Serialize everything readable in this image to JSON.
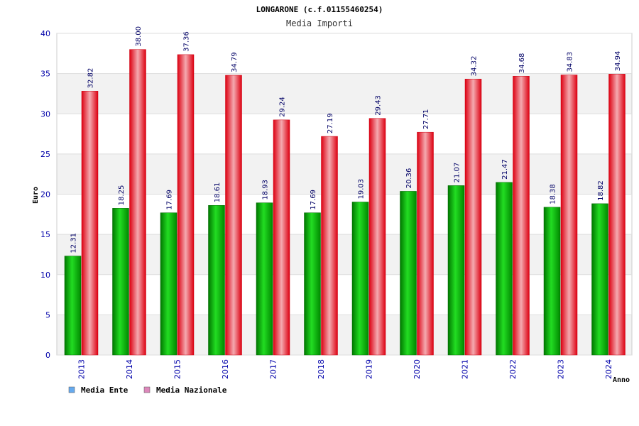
{
  "chart_data": {
    "type": "bar",
    "title": "LONGARONE (c.f.01155460254)",
    "subtitle": "Media Importi",
    "xlabel": "Anno",
    "ylabel": "Euro",
    "ylim": [
      0,
      40
    ],
    "yticks": [
      0,
      5,
      10,
      15,
      20,
      25,
      30,
      35,
      40
    ],
    "categories": [
      "2013",
      "2014",
      "2015",
      "2016",
      "2017",
      "2018",
      "2019",
      "2020",
      "2021",
      "2022",
      "2023",
      "2024"
    ],
    "series": [
      {
        "name": "Media Ente",
        "values": [
          12.31,
          18.25,
          17.69,
          18.61,
          18.93,
          17.69,
          19.03,
          20.36,
          21.07,
          21.47,
          18.38,
          18.82
        ],
        "labels": [
          "12.31",
          "18.25",
          "17.69",
          "18.61",
          "18.93",
          "17.69",
          "19.03",
          "20.36",
          "21.07",
          "21.47",
          "18.38",
          "18.82"
        ],
        "color": "#00aa00",
        "legend_color": "#66aaee"
      },
      {
        "name": "Media Nazionale",
        "values": [
          32.82,
          38.0,
          37.36,
          34.79,
          29.24,
          27.19,
          29.43,
          27.71,
          34.32,
          34.68,
          34.83,
          34.94
        ],
        "labels": [
          "32.82",
          "38.00",
          "37.36",
          "34.79",
          "29.24",
          "27.19",
          "29.43",
          "27.71",
          "34.32",
          "34.68",
          "34.83",
          "34.94"
        ],
        "color": "#ee1122",
        "legend_color": "#dd88bb"
      }
    ],
    "grid": true,
    "legend_position": "bottom-left"
  }
}
